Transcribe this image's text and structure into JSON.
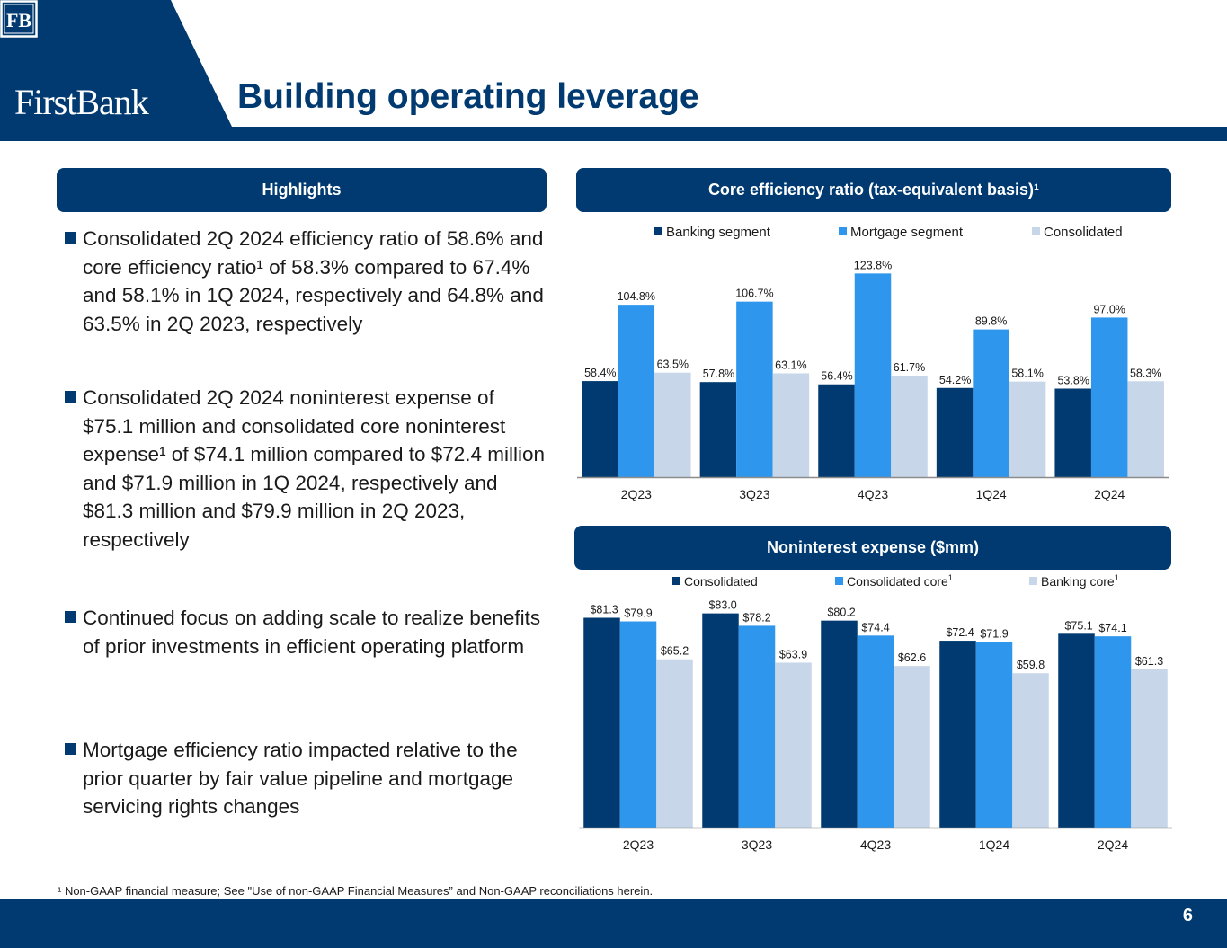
{
  "header": {
    "logo_text": "FirstBank",
    "logo_mark": "FB",
    "title": "Building operating leverage"
  },
  "highlights": {
    "header": "Highlights",
    "bullets": [
      "Consolidated 2Q 2024 efficiency ratio of 58.6% and core efficiency ratio¹ of 58.3% compared to 67.4% and 58.1% in 1Q 2024, respectively and 64.8% and 63.5% in 2Q 2023, respectively",
      "Consolidated 2Q 2024 noninterest expense of $75.1 million and consolidated core noninterest expense¹ of $74.1 million compared to $72.4 million and $71.9 million in 1Q 2024, respectively and $81.3 million and $79.9 million in 2Q 2023, respectively",
      "Continued focus on adding scale to realize benefits of prior investments in efficient operating platform",
      "Mortgage efficiency ratio impacted relative to the prior quarter by fair value pipeline and mortgage servicing rights changes"
    ]
  },
  "efficiency_panel": {
    "header": "Core efficiency ratio (tax-equivalent basis)¹"
  },
  "expense_panel": {
    "header": "Noninterest expense ($mm)"
  },
  "colors": {
    "navy": "#003A70",
    "blue": "#2E96EC",
    "light": "#C7D6E8"
  },
  "chart_data": [
    {
      "type": "bar",
      "title": "Core efficiency ratio (tax-equivalent basis)¹",
      "categories": [
        "2Q23",
        "3Q23",
        "4Q23",
        "1Q24",
        "2Q24"
      ],
      "series": [
        {
          "name": "Banking segment",
          "values": [
            58.4,
            57.8,
            56.4,
            54.2,
            53.8
          ],
          "labels": [
            "58.4%",
            "57.8%",
            "56.4%",
            "54.2%",
            "53.8%"
          ],
          "color": "#003A70"
        },
        {
          "name": "Mortgage segment",
          "values": [
            104.8,
            106.7,
            123.8,
            89.8,
            97.0
          ],
          "labels": [
            "104.8%",
            "106.7%",
            "123.8%",
            "89.8%",
            "97.0%"
          ],
          "color": "#2E96EC"
        },
        {
          "name": "Consolidated",
          "values": [
            63.5,
            63.1,
            61.7,
            58.1,
            58.3
          ],
          "labels": [
            "63.5%",
            "63.1%",
            "61.7%",
            "58.1%",
            "58.3%"
          ],
          "color": "#C7D6E8"
        }
      ],
      "legend_position": "top",
      "ylim": [
        0,
        130
      ],
      "grid": false
    },
    {
      "type": "bar",
      "title": "Noninterest expense ($mm)",
      "categories": [
        "2Q23",
        "3Q23",
        "4Q23",
        "1Q24",
        "2Q24"
      ],
      "series": [
        {
          "name": "Consolidated",
          "sup": "",
          "values": [
            81.3,
            83.0,
            80.2,
            72.4,
            75.1
          ],
          "labels": [
            "$81.3",
            "$83.0",
            "$80.2",
            "$72.4",
            "$75.1"
          ],
          "color": "#003A70"
        },
        {
          "name": "Consolidated core",
          "sup": "1",
          "values": [
            79.9,
            78.2,
            74.4,
            71.9,
            74.1
          ],
          "labels": [
            "$79.9",
            "$78.2",
            "$74.4",
            "$71.9",
            "$74.1"
          ],
          "color": "#2E96EC"
        },
        {
          "name": "Banking core",
          "sup": "1",
          "values": [
            65.2,
            63.9,
            62.6,
            59.8,
            61.3
          ],
          "labels": [
            "$65.2",
            "$63.9",
            "$62.6",
            "$59.8",
            "$61.3"
          ],
          "color": "#C7D6E8"
        }
      ],
      "legend_position": "top",
      "ylim": [
        0,
        86
      ],
      "grid": false
    }
  ],
  "footnote": "¹ Non-GAAP financial measure; See \"Use of non-GAAP Financial Measures” and Non-GAAP reconciliations herein.",
  "footer": {
    "page_number": "6"
  }
}
